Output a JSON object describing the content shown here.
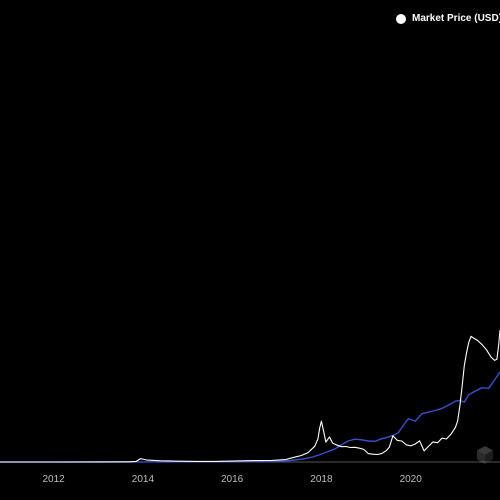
{
  "colors": {
    "background": "#000000",
    "price_line": "#ffffff",
    "secondary_line": "#3b4fd0",
    "baseline": "#555555",
    "tick_text": "#bfbfbf"
  },
  "legend": {
    "label": "Market Price (USD)"
  },
  "watermark": {
    "icon": "cube-logo-icon",
    "text": "B"
  },
  "chart_data": {
    "type": "line",
    "x_unit": "year",
    "xlim": [
      2010.8,
      2022.0
    ],
    "y_scale": "linear",
    "grid": false,
    "legend_position": "top-right",
    "x_ticks": [
      2012,
      2014,
      2016,
      2018,
      2020
    ],
    "series": [
      {
        "name": "Market Price (USD)",
        "color": "#ffffff",
        "x": [
          2010.8,
          2012.0,
          2013.0,
          2013.7,
          2013.85,
          2013.95,
          2014.1,
          2014.4,
          2014.8,
          2015.2,
          2015.6,
          2016.0,
          2016.5,
          2016.9,
          2017.2,
          2017.4,
          2017.55,
          2017.7,
          2017.85,
          2017.92,
          2017.96,
          2018.0,
          2018.05,
          2018.1,
          2018.18,
          2018.25,
          2018.35,
          2018.45,
          2018.55,
          2018.65,
          2018.75,
          2018.85,
          2018.95,
          2019.05,
          2019.15,
          2019.25,
          2019.35,
          2019.45,
          2019.52,
          2019.6,
          2019.7,
          2019.8,
          2019.9,
          2020.0,
          2020.1,
          2020.2,
          2020.3,
          2020.4,
          2020.5,
          2020.6,
          2020.7,
          2020.8,
          2020.9,
          2021.0,
          2021.05,
          2021.1,
          2021.15,
          2021.2,
          2021.25,
          2021.3,
          2021.35,
          2021.42,
          2021.5,
          2021.6,
          2021.7,
          2021.8,
          2021.88,
          2021.93,
          2021.97,
          2022.0
        ],
        "y": [
          0.0,
          0.01,
          0.03,
          0.1,
          0.3,
          1.6,
          0.9,
          0.55,
          0.4,
          0.3,
          0.28,
          0.42,
          0.65,
          0.75,
          1.2,
          2.3,
          3.1,
          4.5,
          7.5,
          11.0,
          16.0,
          19.5,
          14.5,
          9.5,
          12.0,
          9.0,
          8.0,
          7.3,
          7.4,
          6.9,
          7.0,
          6.6,
          6.0,
          4.0,
          3.7,
          3.6,
          4.0,
          5.4,
          7.0,
          12.5,
          10.3,
          10.0,
          8.2,
          7.7,
          8.6,
          10.1,
          5.3,
          7.5,
          9.6,
          9.2,
          11.4,
          11.0,
          13.2,
          16.5,
          19.5,
          26.5,
          36.0,
          46.0,
          52.0,
          57.0,
          60.0,
          59.0,
          58.0,
          56.0,
          53.5,
          50.0,
          48.5,
          49.0,
          56.0,
          63.0
        ]
      },
      {
        "color": "#3b4fd0",
        "x": [
          2010.8,
          2013.0,
          2014.0,
          2015.0,
          2016.0,
          2016.8,
          2017.3,
          2017.6,
          2017.8,
          2017.95,
          2018.1,
          2018.3,
          2018.45,
          2018.6,
          2018.75,
          2018.9,
          2019.05,
          2019.2,
          2019.35,
          2019.45,
          2019.55,
          2019.62,
          2019.72,
          2019.85,
          2019.95,
          2020.1,
          2020.25,
          2020.4,
          2020.55,
          2020.7,
          2020.85,
          2021.0,
          2021.1,
          2021.2,
          2021.3,
          2021.45,
          2021.6,
          2021.75,
          2021.9,
          2022.0
        ],
        "y": [
          0.0,
          0.02,
          0.05,
          0.08,
          0.12,
          0.22,
          0.7,
          1.5,
          2.4,
          3.4,
          4.6,
          6.2,
          8.2,
          10.0,
          10.9,
          10.6,
          10.0,
          9.9,
          11.1,
          11.6,
          12.3,
          12.9,
          13.9,
          17.9,
          20.7,
          19.5,
          23.0,
          23.8,
          24.6,
          25.6,
          27.2,
          29.0,
          29.4,
          28.6,
          32.1,
          33.9,
          35.4,
          35.2,
          39.8,
          43.0
        ]
      }
    ]
  }
}
